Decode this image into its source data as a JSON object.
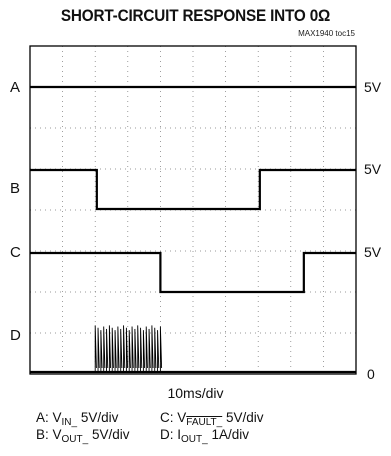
{
  "title": "SHORT-CIRCUIT RESPONSE INTO 0Ω",
  "tag": "MAX1940 toc15",
  "timebase": "10ms/div",
  "channels": {
    "A": {
      "label": "A",
      "scale_right": "5V"
    },
    "B": {
      "label": "B",
      "scale_right": "5V"
    },
    "C": {
      "label": "C",
      "scale_right": "5V"
    },
    "D": {
      "label": "D",
      "scale_right": "0"
    }
  },
  "legend": {
    "a_pre": "A: V",
    "a_sub": "IN_",
    "a_post": " 5V/div",
    "b_pre": "B: V",
    "b_sub": "OUT_",
    "b_post": " 5V/div",
    "c_pre": "C: V",
    "c_sub": "FAULT_",
    "c_post": " 5V/div",
    "d_pre": "D: I",
    "d_sub": "OUT_",
    "d_post": " 1A/div"
  },
  "chart_data": {
    "type": "line",
    "grid": true,
    "x_divisions": 10,
    "y_divisions": 8,
    "x_unit": "10ms/div",
    "series": [
      {
        "channel": "A",
        "x": [
          0,
          10
        ],
        "level": [
          1,
          1
        ]
      },
      {
        "channel": "B",
        "x": [
          0,
          2.05,
          2.05,
          7.05,
          7.05,
          10
        ],
        "level": [
          1,
          1,
          0,
          0,
          1,
          1
        ]
      },
      {
        "channel": "C",
        "x": [
          0,
          4.0,
          4.0,
          8.4,
          8.4,
          10
        ],
        "level": [
          1,
          1,
          0,
          0,
          1,
          1
        ]
      },
      {
        "channel": "D",
        "x": [
          0,
          2.0,
          2.0,
          4.0,
          4.0,
          10
        ],
        "level": [
          0,
          0,
          0.65,
          0.65,
          0,
          0
        ],
        "note_burst": true
      }
    ]
  }
}
